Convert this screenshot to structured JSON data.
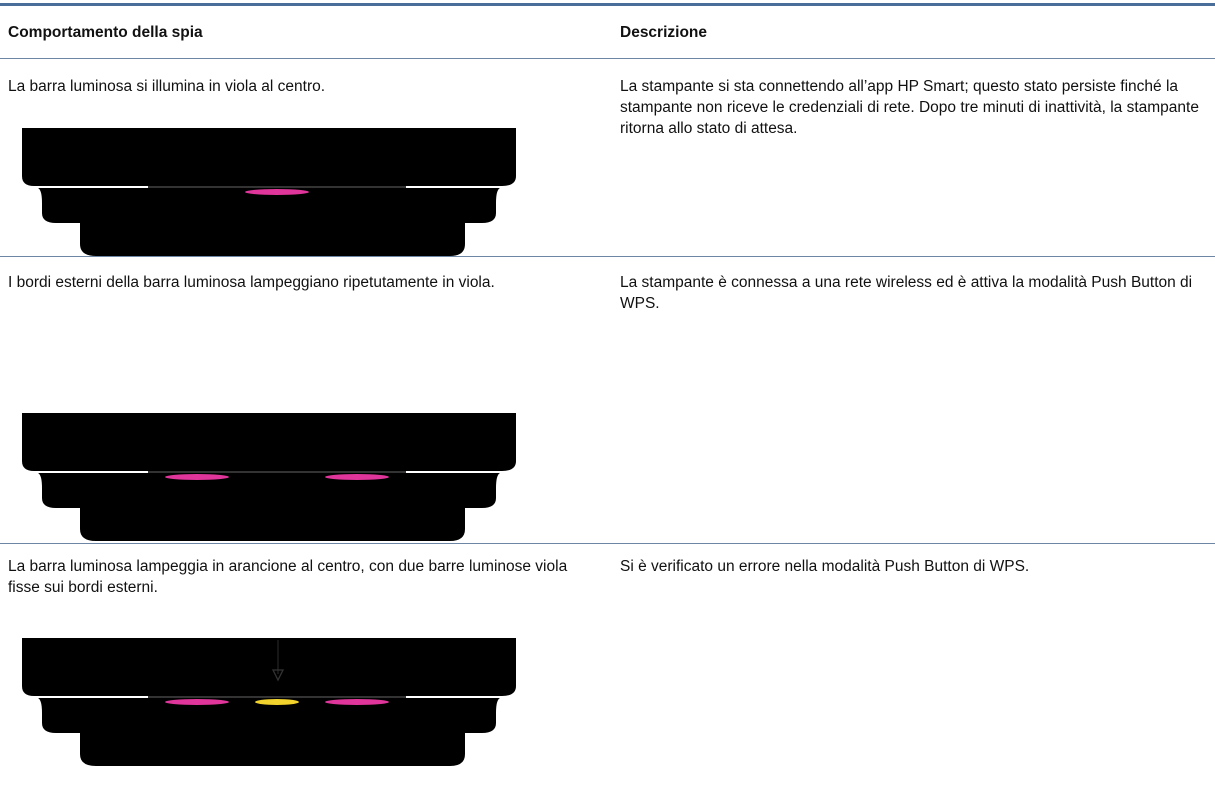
{
  "table": {
    "header": [
      "Comportamento della spia",
      "Descrizione"
    ],
    "rows": [
      [
        "La barra luminosa si illumina in viola al centro.",
        "La stampante si sta connettendo all’app HP Smart; questo stato persiste finché la stampante non riceve le credenziali di rete. Dopo tre minuti di inattività, la stampante ritorna allo stato di attesa."
      ],
      [
        "I bordi esterni della barra luminosa lampeggiano ripetutamente in viola.",
        "La stampante è connessa a una rete wireless ed è attiva la modalità Push Button di WPS."
      ],
      [
        "La barra luminosa lampeggia in arancione al centro, con due barre luminose viola fisse sui bordi esterni.",
        "Si è verificato un errore nella modalità Push Button di WPS."
      ]
    ]
  }
}
